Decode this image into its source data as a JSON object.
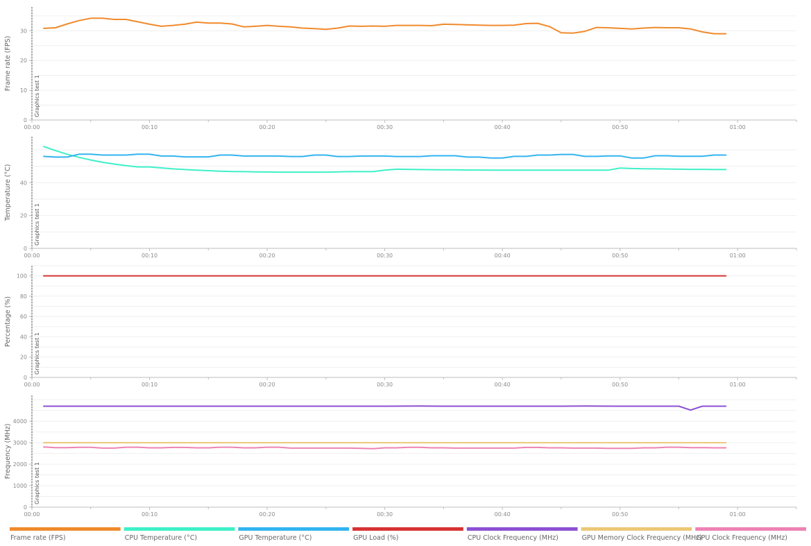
{
  "marker_label": "Graphics test 1",
  "legend": [
    {
      "label": "Frame rate (FPS)",
      "color": "#f08a2c"
    },
    {
      "label": "CPU Temperature (°C)",
      "color": "#3ff0c8"
    },
    {
      "label": "GPU Temperature (°C)",
      "color": "#32b4f0"
    },
    {
      "label": "GPU Load (%)",
      "color": "#d63232"
    },
    {
      "label": "CPU Clock Frequency (MHz)",
      "color": "#8c50d2"
    },
    {
      "label": "GPU Memory Clock Frequency (MHz)",
      "color": "#ebc878"
    },
    {
      "label": "GPU Clock Frequency (MHz)",
      "color": "#ee82b4"
    }
  ],
  "chart_data": [
    {
      "type": "line",
      "ylabel": "Frame rate (FPS)",
      "xlabel": "",
      "x_unit": "seconds",
      "xlim": [
        0,
        65
      ],
      "ylim": [
        0,
        38
      ],
      "x_ticks": [
        "00:00",
        "00:10",
        "00:20",
        "00:30",
        "00:40",
        "00:50",
        "01:00"
      ],
      "y_ticks": [
        0,
        10,
        20,
        30
      ],
      "grid": true,
      "series": [
        {
          "name": "Frame rate (FPS)",
          "color": "#f08a2c",
          "x": [
            1,
            2,
            3,
            4,
            5,
            6,
            7,
            8,
            9,
            10,
            11,
            12,
            13,
            14,
            15,
            16,
            17,
            18,
            19,
            20,
            21,
            22,
            23,
            24,
            25,
            26,
            27,
            28,
            29,
            30,
            31,
            32,
            33,
            34,
            35,
            36,
            37,
            38,
            39,
            40,
            41,
            42,
            43,
            44,
            45,
            46,
            47,
            48,
            49,
            50,
            51,
            52,
            53,
            54,
            55,
            56,
            57,
            58,
            59
          ],
          "y": [
            30.8,
            31,
            32.3,
            33.4,
            34.2,
            34.2,
            33.8,
            33.8,
            33,
            32.2,
            31.5,
            31.8,
            32.2,
            32.9,
            32.6,
            32.6,
            32.3,
            31.3,
            31.5,
            31.8,
            31.5,
            31.3,
            30.9,
            30.7,
            30.5,
            30.9,
            31.6,
            31.5,
            31.6,
            31.5,
            31.8,
            31.8,
            31.8,
            31.7,
            32.2,
            32.1,
            32,
            31.9,
            31.8,
            31.8,
            31.9,
            32.4,
            32.5,
            31.4,
            29.3,
            29.2,
            29.8,
            31.1,
            31,
            30.8,
            30.6,
            30.9,
            31.1,
            31,
            31,
            30.6,
            29.6,
            29,
            29
          ]
        }
      ]
    },
    {
      "type": "line",
      "ylabel": "Temperature (°C)",
      "xlabel": "",
      "x_unit": "seconds",
      "xlim": [
        0,
        65
      ],
      "ylim": [
        0,
        68
      ],
      "x_ticks": [
        "00:00",
        "00:10",
        "00:20",
        "00:30",
        "00:40",
        "00:50",
        "01:00"
      ],
      "y_ticks": [
        0,
        20,
        40
      ],
      "grid": true,
      "series": [
        {
          "name": "CPU Temperature (°C)",
          "color": "#3ff0c8",
          "x": [
            1,
            2,
            3,
            4,
            5,
            6,
            7,
            8,
            9,
            10,
            11,
            12,
            13,
            14,
            15,
            16,
            17,
            18,
            19,
            20,
            21,
            22,
            23,
            24,
            25,
            26,
            27,
            28,
            29,
            30,
            31,
            32,
            33,
            34,
            35,
            36,
            37,
            38,
            39,
            40,
            41,
            42,
            43,
            44,
            45,
            46,
            47,
            48,
            49,
            50,
            51,
            52,
            53,
            54,
            55,
            56,
            57,
            58,
            59
          ],
          "y": [
            62,
            59.5,
            57.3,
            55.4,
            53.8,
            52.4,
            51.3,
            50.4,
            49.6,
            49.6,
            49,
            48.4,
            48,
            47.6,
            47.3,
            47,
            46.8,
            46.7,
            46.6,
            46.5,
            46.4,
            46.4,
            46.4,
            46.4,
            46.4,
            46.6,
            46.7,
            46.7,
            46.7,
            47.6,
            48.2,
            48.1,
            48,
            47.9,
            47.8,
            47.8,
            47.7,
            47.7,
            47.6,
            47.6,
            47.6,
            47.6,
            47.6,
            47.6,
            47.6,
            47.6,
            47.6,
            47.6,
            47.6,
            48.9,
            48.6,
            48.5,
            48.4,
            48.3,
            48.2,
            48.1,
            48.1,
            48,
            48
          ]
        },
        {
          "name": "GPU Temperature (°C)",
          "color": "#32b4f0",
          "x": [
            1,
            2,
            3,
            4,
            5,
            6,
            7,
            8,
            9,
            10,
            11,
            12,
            13,
            14,
            15,
            16,
            17,
            18,
            19,
            20,
            21,
            22,
            23,
            24,
            25,
            26,
            27,
            28,
            29,
            30,
            31,
            32,
            33,
            34,
            35,
            36,
            37,
            38,
            39,
            40,
            41,
            42,
            43,
            44,
            45,
            46,
            47,
            48,
            49,
            50,
            51,
            52,
            53,
            54,
            55,
            56,
            57,
            58,
            59
          ],
          "y": [
            56,
            55.6,
            55.6,
            57.3,
            57.3,
            56.8,
            56.8,
            56.8,
            57.3,
            57.3,
            56.2,
            56.2,
            55.7,
            55.7,
            55.7,
            56.8,
            56.8,
            56.2,
            56.2,
            56.2,
            56.2,
            55.9,
            55.9,
            56.8,
            56.8,
            55.9,
            55.9,
            56.2,
            56.2,
            56.2,
            55.9,
            55.9,
            55.9,
            56.4,
            56.4,
            56.4,
            55.6,
            55.6,
            55,
            55,
            56,
            56,
            56.8,
            56.8,
            57.2,
            57.2,
            56,
            56,
            56.3,
            56.3,
            55,
            55,
            56.4,
            56.4,
            56.1,
            56.1,
            56.1,
            56.8,
            56.8
          ]
        }
      ]
    },
    {
      "type": "line",
      "ylabel": "Percentage (%)",
      "xlabel": "",
      "x_unit": "seconds",
      "xlim": [
        0,
        65
      ],
      "ylim": [
        0,
        110
      ],
      "x_ticks": [
        "00:00",
        "00:10",
        "00:20",
        "00:30",
        "00:40",
        "00:50",
        "01:00"
      ],
      "y_ticks": [
        0,
        20,
        40,
        60,
        80,
        100
      ],
      "grid": true,
      "series": [
        {
          "name": "GPU Load (%)",
          "color": "#d63232",
          "x": [
            1,
            59
          ],
          "y": [
            100,
            100
          ]
        }
      ]
    },
    {
      "type": "line",
      "ylabel": "Frequency (MHz)",
      "xlabel": "",
      "x_unit": "seconds",
      "xlim": [
        0,
        65
      ],
      "ylim": [
        0,
        5200
      ],
      "x_ticks": [
        "00:00",
        "00:10",
        "00:20",
        "00:30",
        "00:40",
        "00:50",
        "01:00"
      ],
      "y_ticks": [
        0,
        1000,
        2000,
        3000,
        4000
      ],
      "grid": true,
      "series": [
        {
          "name": "CPU Clock Frequency (MHz)",
          "color": "#8c50d2",
          "x": [
            1,
            5,
            10,
            15,
            20,
            25,
            30,
            33,
            35,
            40,
            45,
            47,
            50,
            54,
            55,
            56,
            57,
            59
          ],
          "y": [
            4700,
            4700,
            4700,
            4700,
            4700,
            4700,
            4700,
            4710,
            4700,
            4700,
            4700,
            4710,
            4700,
            4700,
            4700,
            4520,
            4700,
            4700
          ]
        },
        {
          "name": "GPU Memory Clock Frequency (MHz)",
          "color": "#ebc878",
          "x": [
            1,
            59
          ],
          "y": [
            3000,
            3000
          ]
        },
        {
          "name": "GPU Clock Frequency (MHz)",
          "color": "#ee82b4",
          "x": [
            1,
            2,
            3,
            4,
            5,
            6,
            7,
            8,
            9,
            10,
            11,
            12,
            13,
            14,
            15,
            16,
            17,
            18,
            19,
            20,
            21,
            22,
            23,
            24,
            25,
            26,
            27,
            28,
            29,
            30,
            31,
            32,
            33,
            34,
            35,
            36,
            37,
            38,
            39,
            40,
            41,
            42,
            43,
            44,
            45,
            46,
            47,
            48,
            49,
            50,
            51,
            52,
            53,
            54,
            55,
            56,
            57,
            58,
            59
          ],
          "y": [
            2800,
            2770,
            2770,
            2785,
            2785,
            2750,
            2750,
            2790,
            2790,
            2760,
            2760,
            2780,
            2780,
            2760,
            2760,
            2790,
            2790,
            2760,
            2760,
            2790,
            2790,
            2750,
            2750,
            2750,
            2750,
            2750,
            2750,
            2740,
            2720,
            2760,
            2760,
            2785,
            2785,
            2760,
            2760,
            2750,
            2750,
            2750,
            2750,
            2750,
            2750,
            2780,
            2780,
            2760,
            2760,
            2750,
            2750,
            2750,
            2740,
            2740,
            2740,
            2760,
            2760,
            2790,
            2790,
            2770,
            2770,
            2760,
            2760
          ]
        }
      ]
    }
  ]
}
